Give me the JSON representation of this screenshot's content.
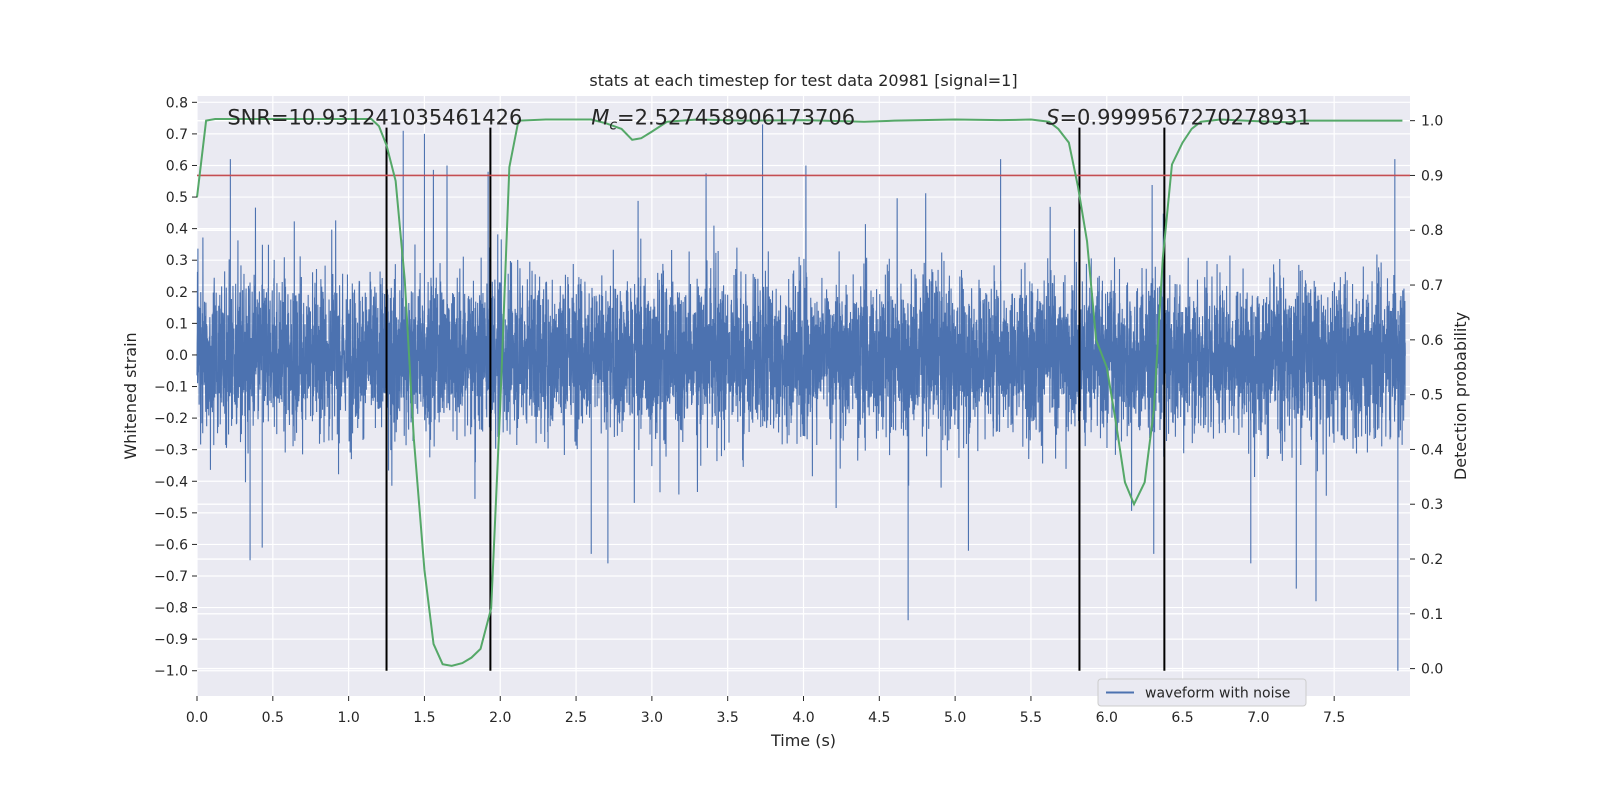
{
  "chart_data": {
    "type": "line",
    "title": "stats at each timestep for test data 20981 [signal=1]",
    "xlabel": "Time (s)",
    "ylabel": "Whitened strain",
    "y2label": "Detection probability",
    "xlim": [
      0.0,
      8.0
    ],
    "ylim": [
      -1.08,
      0.82
    ],
    "y2lim": [
      -0.05,
      1.045
    ],
    "x_ticks": [
      0.0,
      0.5,
      1.0,
      1.5,
      2.0,
      2.5,
      3.0,
      3.5,
      4.0,
      4.5,
      5.0,
      5.5,
      6.0,
      6.5,
      7.0,
      7.5
    ],
    "y_ticks": [
      -1.0,
      -0.9,
      -0.8,
      -0.7,
      -0.6,
      -0.5,
      -0.4,
      -0.3,
      -0.2,
      -0.1,
      0.0,
      0.1,
      0.2,
      0.3,
      0.4,
      0.5,
      0.6,
      0.7,
      0.8
    ],
    "y2_ticks": [
      0.0,
      0.1,
      0.2,
      0.3,
      0.4,
      0.5,
      0.6,
      0.7,
      0.8,
      0.9,
      1.0
    ],
    "grid": true,
    "legend_position": "lower-right",
    "colors": {
      "waveform": "#4c72b0",
      "probability": "#55a868",
      "threshold": "#c44e52",
      "markers": "#000000",
      "background": "#eaeaf2",
      "grid": "#ffffff"
    },
    "annotations": {
      "snr_text": "SNR=10.931241035461426",
      "mc_text": "=2.527458906173706",
      "mc_symbol": "M",
      "mc_subscript": "c",
      "s_symbol": "S",
      "s_text": "=0.9999567270278931"
    },
    "series": [
      {
        "name": "waveform with noise",
        "kind": "strain",
        "sample_count": 8000,
        "typical_amplitude": 0.22,
        "peak_range": [
          -1.0,
          0.73
        ],
        "spikes": [
          {
            "x": 0.35,
            "y": -0.65
          },
          {
            "x": 0.43,
            "y": -0.61
          },
          {
            "x": 0.22,
            "y": 0.62
          },
          {
            "x": 1.36,
            "y": 0.71
          },
          {
            "x": 1.5,
            "y": 0.7
          },
          {
            "x": 1.92,
            "y": 0.58
          },
          {
            "x": 2.6,
            "y": -0.63
          },
          {
            "x": 2.71,
            "y": -0.66
          },
          {
            "x": 3.73,
            "y": 0.73
          },
          {
            "x": 4.69,
            "y": -0.84
          },
          {
            "x": 5.3,
            "y": 0.62
          },
          {
            "x": 6.31,
            "y": -0.63
          },
          {
            "x": 6.95,
            "y": -0.66
          },
          {
            "x": 7.25,
            "y": -0.74
          },
          {
            "x": 7.38,
            "y": -0.78
          },
          {
            "x": 7.92,
            "y": -1.0
          },
          {
            "x": 7.9,
            "y": 0.62
          }
        ]
      },
      {
        "kind": "detection_probability",
        "axis": "right",
        "x": [
          0.0,
          0.06,
          0.12,
          0.3,
          0.6,
          0.9,
          1.15,
          1.2,
          1.25,
          1.31,
          1.37,
          1.43,
          1.5,
          1.56,
          1.62,
          1.68,
          1.75,
          1.81,
          1.87,
          1.94,
          2.0,
          2.06,
          2.12,
          2.3,
          2.6,
          2.7,
          2.8,
          2.87,
          2.93,
          3.0,
          3.1,
          3.3,
          3.6,
          4.0,
          4.4,
          4.6,
          5.0,
          5.3,
          5.5,
          5.62,
          5.68,
          5.75,
          5.81,
          5.87,
          5.93,
          6.0,
          6.06,
          6.12,
          6.18,
          6.25,
          6.31,
          6.37,
          6.43,
          6.5,
          6.56,
          6.62,
          6.75,
          7.0,
          7.2,
          7.3,
          7.5,
          7.95
        ],
        "y": [
          0.86,
          1.0,
          1.003,
          1.003,
          1.003,
          1.003,
          1.003,
          0.99,
          0.955,
          0.89,
          0.71,
          0.42,
          0.18,
          0.045,
          0.008,
          0.005,
          0.01,
          0.02,
          0.036,
          0.11,
          0.48,
          0.915,
          1.0,
          1.002,
          1.002,
          0.995,
          0.985,
          0.965,
          0.968,
          0.98,
          0.998,
          1.002,
          1.0,
          1.001,
          0.998,
          1.0,
          1.002,
          1.001,
          1.002,
          0.998,
          0.985,
          0.96,
          0.88,
          0.78,
          0.6,
          0.55,
          0.45,
          0.34,
          0.3,
          0.34,
          0.47,
          0.75,
          0.92,
          0.96,
          0.985,
          0.998,
          1.002,
          0.999,
          0.997,
          1.0,
          1.0,
          1.0
        ]
      },
      {
        "kind": "threshold",
        "axis": "right",
        "value": 0.9
      }
    ],
    "vertical_lines": [
      {
        "x": 1.25,
        "y_top": 0.72
      },
      {
        "x": 1.935,
        "y_top": 0.72
      },
      {
        "x": 5.82,
        "y_top": 0.72
      },
      {
        "x": 6.38,
        "y_top": 0.72
      }
    ],
    "vertical_line_bottom": -1.0
  }
}
